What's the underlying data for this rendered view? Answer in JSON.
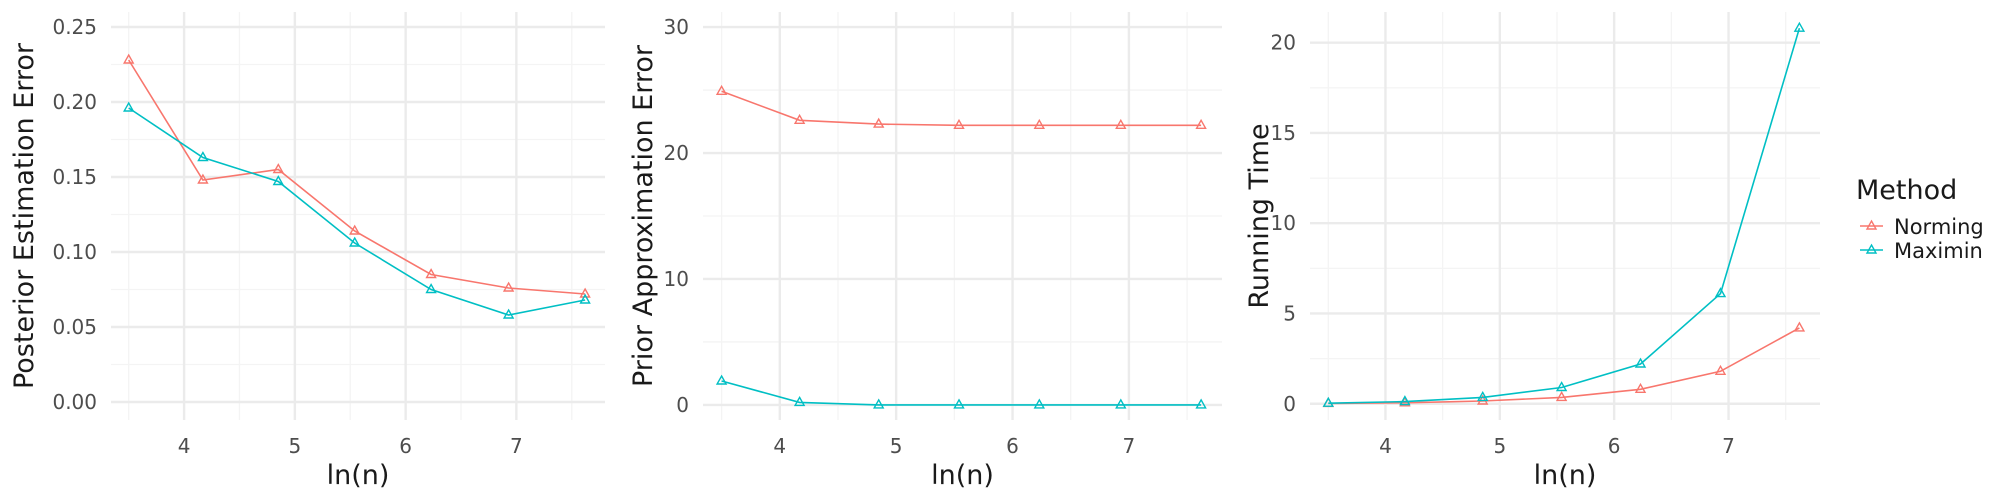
{
  "colors": {
    "Norming": "#F8766D",
    "Maximin": "#00BFC4",
    "grid_major": "#EBEBEB",
    "grid_minor": "#F4F4F4"
  },
  "legend": {
    "title": "Method",
    "entries": [
      "Norming",
      "Maximin"
    ],
    "placement": "right",
    "marker": "triangle-icon"
  },
  "chart_data": [
    {
      "type": "line",
      "xlabel": "ln(n)",
      "ylabel": "Posterior Estimation Error",
      "xlim": [
        3.34,
        7.8
      ],
      "ylim": [
        -0.012,
        0.26
      ],
      "xticks": [
        4,
        5,
        6,
        7
      ],
      "yticks": [
        0.0,
        0.05,
        0.1,
        0.15,
        0.2,
        0.25
      ],
      "ytick_labels": [
        "0.00",
        "0.05",
        "0.10",
        "0.15",
        "0.20",
        "0.25"
      ],
      "x": [
        3.5,
        4.17,
        4.85,
        5.54,
        6.23,
        6.93,
        7.62
      ],
      "series": [
        {
          "name": "Norming",
          "values": [
            0.228,
            0.148,
            0.155,
            0.114,
            0.085,
            0.076,
            0.072
          ]
        },
        {
          "name": "Maximin",
          "values": [
            0.196,
            0.163,
            0.147,
            0.106,
            0.075,
            0.058,
            0.068
          ]
        }
      ],
      "grid": true
    },
    {
      "type": "line",
      "xlabel": "ln(n)",
      "ylabel": "Prior Approximation Error",
      "xlim": [
        3.34,
        7.8
      ],
      "ylim": [
        -1.2,
        31.2
      ],
      "xticks": [
        4,
        5,
        6,
        7
      ],
      "yticks": [
        0,
        10,
        20,
        30
      ],
      "ytick_labels": [
        "0",
        "10",
        "20",
        "30"
      ],
      "x": [
        3.5,
        4.17,
        4.85,
        5.54,
        6.23,
        6.93,
        7.62
      ],
      "series": [
        {
          "name": "Norming",
          "values": [
            24.9,
            22.6,
            22.3,
            22.2,
            22.2,
            22.2,
            22.2
          ]
        },
        {
          "name": "Maximin",
          "values": [
            1.9,
            0.2,
            0.0,
            0.0,
            0.0,
            0.0,
            0.0
          ]
        }
      ],
      "grid": true
    },
    {
      "type": "line",
      "xlabel": "ln(n)",
      "ylabel": "Running Time",
      "xlim": [
        3.34,
        7.8
      ],
      "ylim": [
        -0.9,
        21.7
      ],
      "xticks": [
        4,
        5,
        6,
        7
      ],
      "yticks": [
        0,
        5,
        10,
        15,
        20
      ],
      "ytick_labels": [
        "0",
        "5",
        "10",
        "15",
        "20"
      ],
      "x": [
        3.5,
        4.17,
        4.85,
        5.54,
        6.23,
        6.93,
        7.62
      ],
      "series": [
        {
          "name": "Norming",
          "values": [
            0.02,
            0.05,
            0.15,
            0.35,
            0.8,
            1.8,
            4.2
          ]
        },
        {
          "name": "Maximin",
          "values": [
            0.03,
            0.12,
            0.35,
            0.9,
            2.2,
            6.1,
            20.8
          ]
        }
      ],
      "grid": true
    }
  ]
}
